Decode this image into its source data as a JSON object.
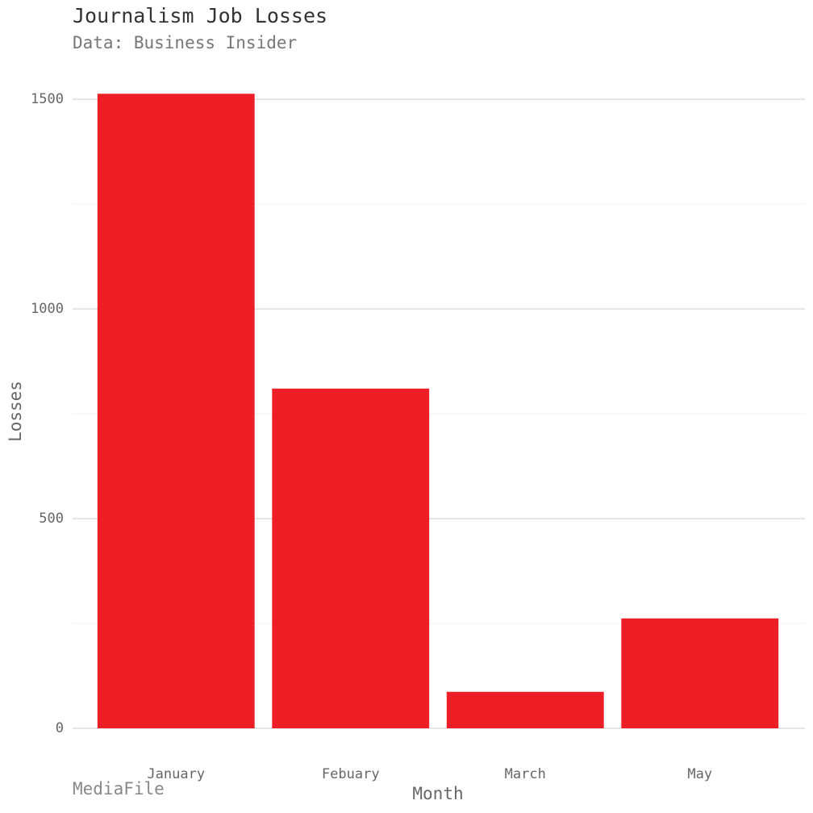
{
  "chart_data": {
    "type": "bar",
    "title": "Journalism Job Losses",
    "subtitle": "Data: Business Insider",
    "caption": "MediaFile",
    "x_label": "Month",
    "y_label": "Losses",
    "categories": [
      "January",
      "Febuary",
      "March",
      "May"
    ],
    "values": [
      1513,
      810,
      87,
      262
    ],
    "color": "#ee1e26",
    "ylim": [
      0,
      1500
    ],
    "yticks": [
      0,
      500,
      1000,
      1500
    ],
    "minor_yticks": [
      250,
      750,
      1250
    ],
    "grid": true
  }
}
